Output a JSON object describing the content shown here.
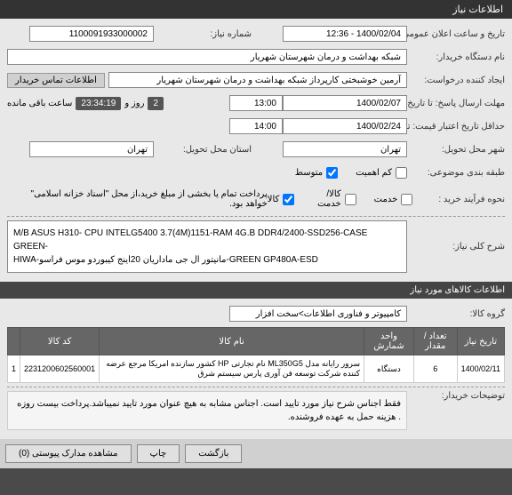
{
  "header": {
    "title": "اطلاعات نیاز"
  },
  "fields": {
    "need_number_label": "شماره نیاز:",
    "need_number": "1100091933000002",
    "announce_label": "تاریخ و ساعت اعلان عمومی:",
    "announce": "1400/02/04 - 12:36",
    "buyer_org_label": "نام دستگاه خریدار:",
    "buyer_org": "شبکه بهداشت و درمان شهرستان شهریار",
    "creator_label": "ایجاد کننده درخواست:",
    "creator": "آرمین خوشبختی کارپرداز شبکه بهداشت و درمان شهرستان شهریار",
    "buyer_info_btn": "اطلاعات تماس خریدار",
    "deadline_resp_label": "مهلت ارسال پاسخ: تا تاریخ:",
    "deadline_resp_date": "1400/02/07",
    "deadline_resp_time": "13:00",
    "remaining_label": "ساعت باقی مانده",
    "remaining_days": "2",
    "remaining_days_label": "روز و",
    "remaining_time": "23:34:19",
    "valid_until_label": "حداقل تاریخ اعتبار قیمت: تا تاریخ:",
    "valid_until_date": "1400/02/24",
    "valid_until_time": "14:00",
    "delivery_state_label": "استان محل تحویل:",
    "delivery_state": "تهران",
    "delivery_city_label": "شهر محل تحویل:",
    "delivery_city": "تهران",
    "budget_label": "طبقه بندی موضوعی:",
    "main_desc_label": "شرح کلی نیاز:",
    "main_desc_1": "M/B ASUS  H310- CPU INTELG5400 3.7(4M)1151-RAM 4G.B DDR4/2400-SSD256-CASE GREEN-",
    "main_desc_2": "HIWA-مانیتور ال جی ماداریان 20اینج کیبوردو موس فراسو-GREEN GP480A-ESD",
    "budget_note": "پرداخت تمام یا بخشی از مبلغ خرید،از محل \"اسناد خزانه اسلامی\" خواهد بود.",
    "category_label": "گروه کالا:",
    "category": "کامپیوتر و فناوری اطلاعات>سخت افزار",
    "table_header": "اطلاعات کالاهای مورد نیاز",
    "purchase_type_label": "نحوه فرآیند خرید :",
    "opt_service": "خدمت",
    "opt_goods": "کالا/خدمت",
    "opt_goods_only": "کالا",
    "opt_urgent": "کم اهمیت",
    "opt_normal": "متوسط"
  },
  "table": {
    "cols": [
      "تاریخ نیاز",
      "تعداد / مقدار",
      "واحد شمارش",
      "نام کالا",
      "کد کالا",
      ""
    ],
    "row": {
      "date": "1400/02/11",
      "qty": "6",
      "unit": "دستگاه",
      "name": "سرور رایانه مدل ML350G5 نام تجارتی HP کشور سازنده امریکا مرجع عرضه کننده شرکت توسعه فن آوری پارس سیستم شرق",
      "code": "2231200602560001",
      "idx": "1"
    }
  },
  "buyer_note_label": "توضیحات خریدار:",
  "buyer_note": "فقط اجناس شرح نیاز مورد تایید است. اجناس مشابه به هیچ عنوان مورد تایید نمیباشد.پرداخت بیست روزه . هزینه حمل به عهده فروشنده.",
  "footer": {
    "attach": "مشاهده مدارک پیوستی  (0)",
    "print": "چاپ",
    "back": "بازگشت"
  }
}
